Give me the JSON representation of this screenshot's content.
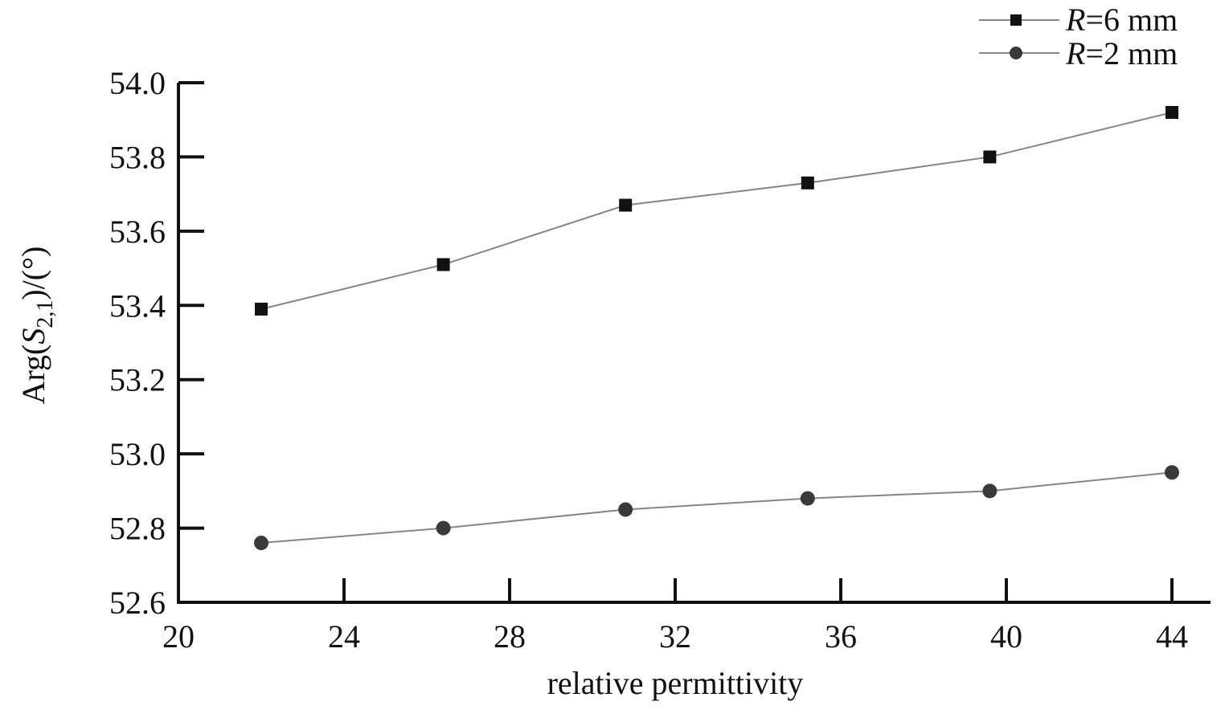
{
  "chart_data": {
    "type": "line",
    "xlabel": "relative permittivity",
    "ylabel_parts": {
      "prefix": "Arg(",
      "var": "S",
      "subscript": "2,1",
      "suffix": ")/(°)"
    },
    "xlim": [
      20,
      44
    ],
    "ylim": [
      52.6,
      54.0
    ],
    "x_ticks": [
      20,
      24,
      28,
      32,
      36,
      40,
      44
    ],
    "y_ticks": [
      52.6,
      52.8,
      53.0,
      53.2,
      53.4,
      53.6,
      53.8,
      54.0
    ],
    "x_tick_labels": [
      "20",
      "24",
      "28",
      "32",
      "36",
      "40",
      "44"
    ],
    "y_tick_labels": [
      "52.6",
      "52.8",
      "53.0",
      "53.2",
      "53.4",
      "53.6",
      "53.8",
      "54.0"
    ],
    "grid": false,
    "legend_position": "top-right",
    "x": [
      22,
      26.4,
      30.8,
      35.2,
      39.6,
      44
    ],
    "series": [
      {
        "legend_var": "R",
        "legend_rest": "=6 mm",
        "marker": "square",
        "values": [
          53.39,
          53.51,
          53.67,
          53.73,
          53.8,
          53.92
        ]
      },
      {
        "legend_var": "R",
        "legend_rest": "=2 mm",
        "marker": "circle",
        "values": [
          52.76,
          52.8,
          52.85,
          52.88,
          52.9,
          52.95
        ]
      }
    ],
    "colors": {
      "line": "#8c8282",
      "marker_square": "#111111",
      "marker_circle": "#3a3a3a",
      "axis": "#111111"
    }
  }
}
